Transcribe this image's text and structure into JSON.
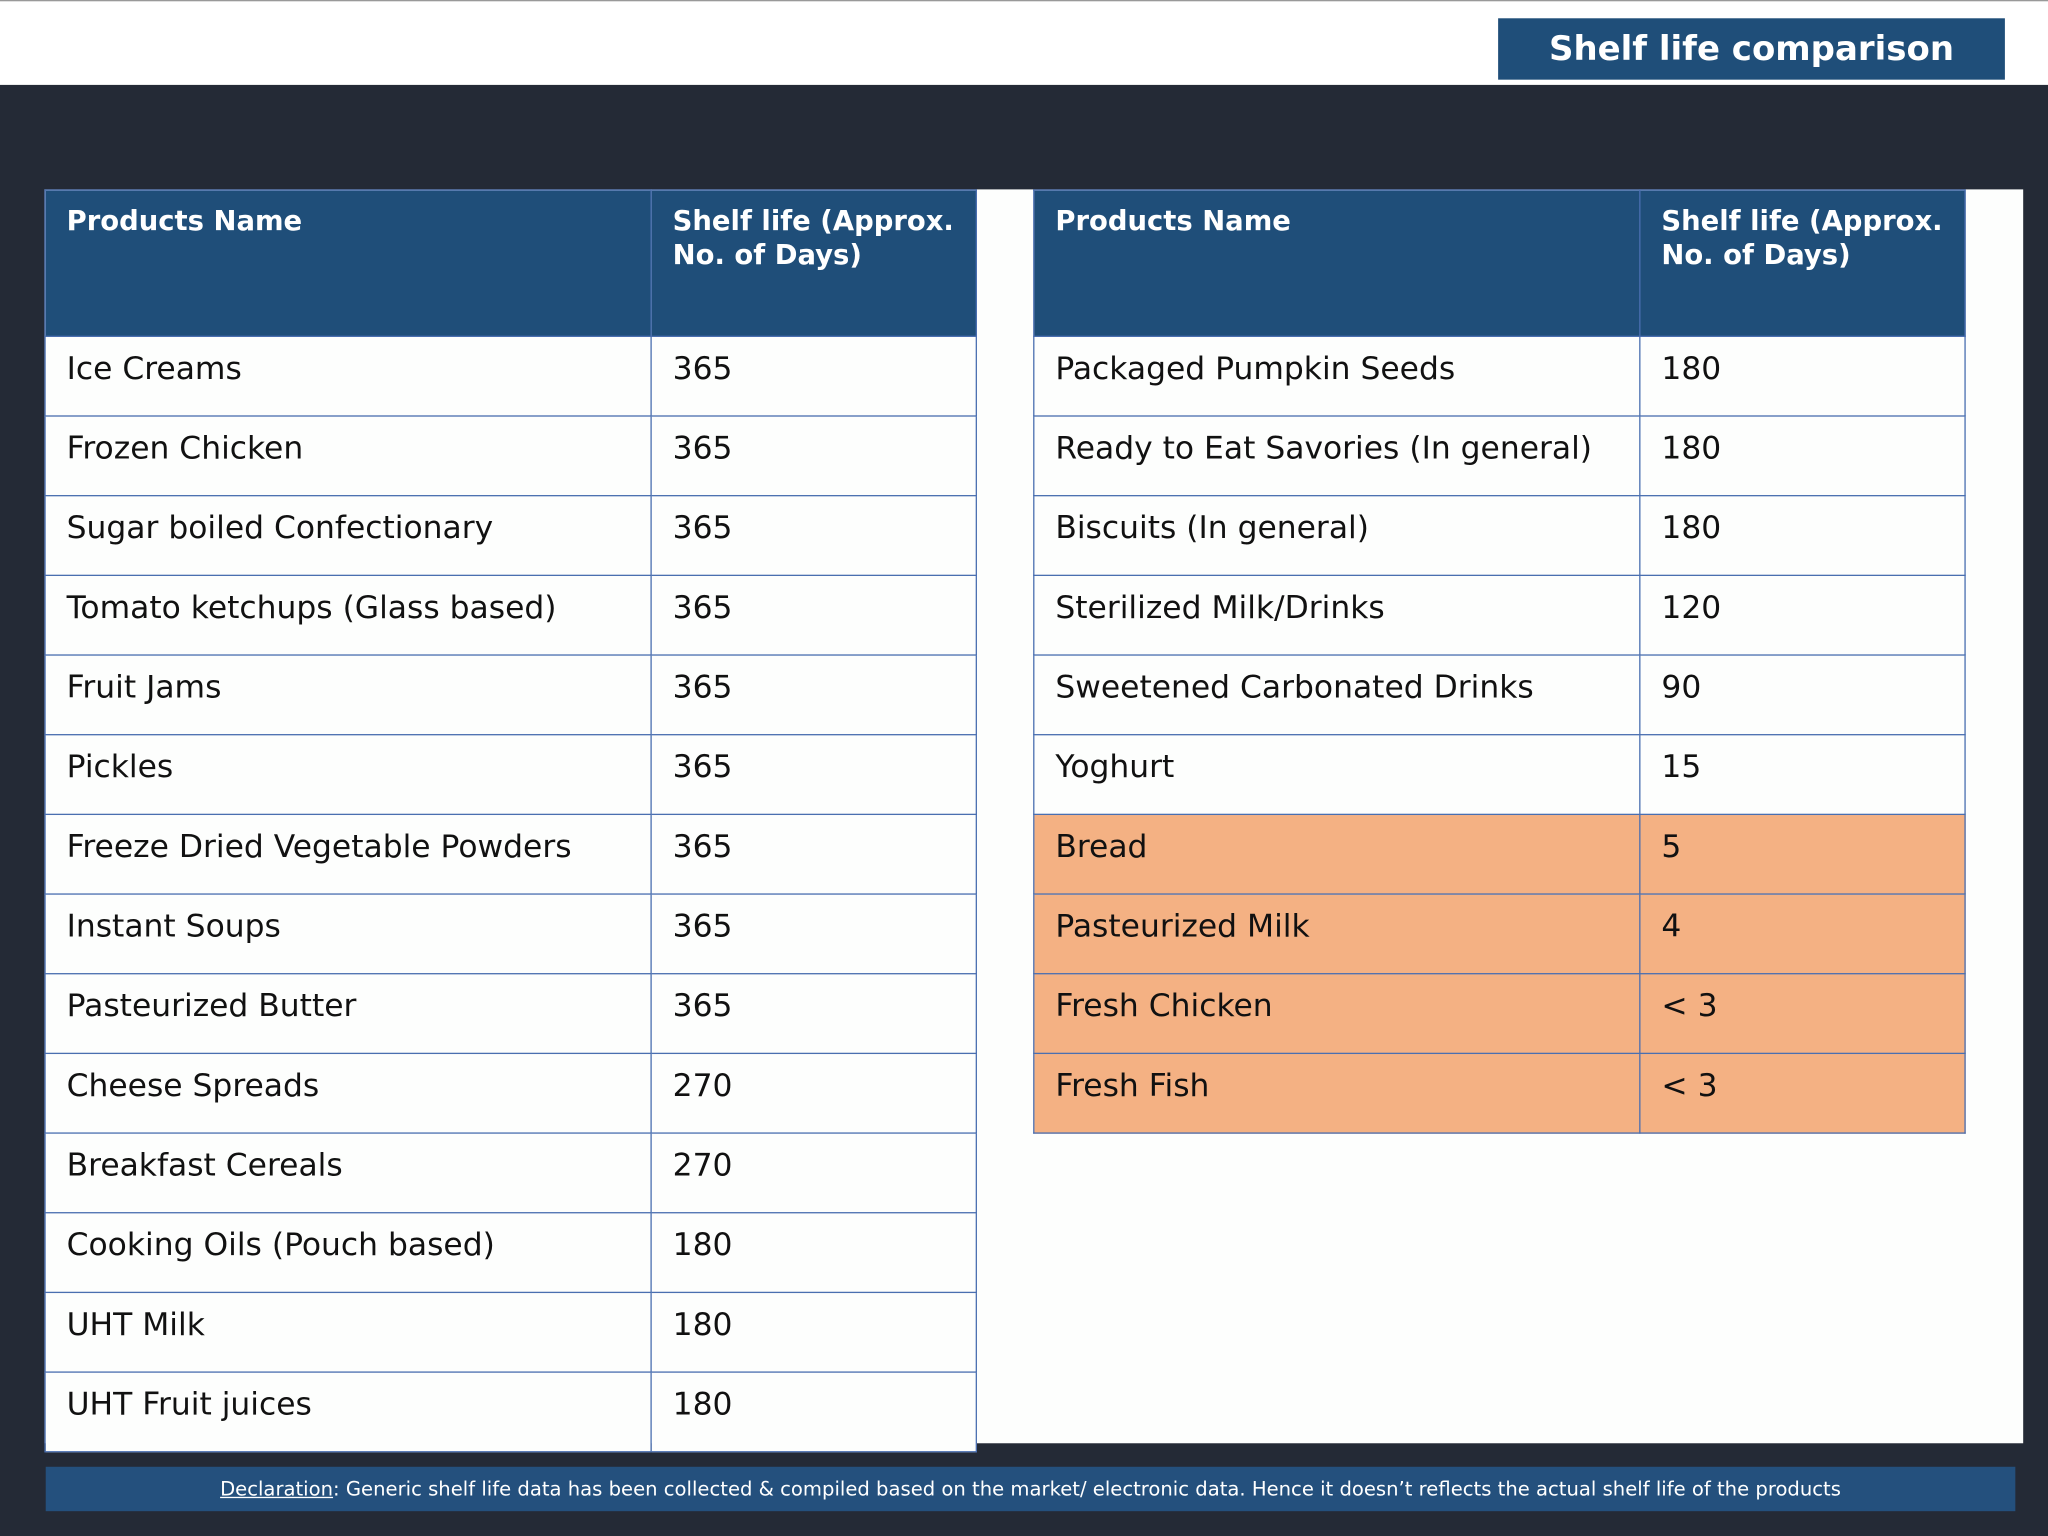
{
  "header": {
    "title": "Shelf life comparison"
  },
  "tables": [
    {
      "columns": [
        "Products Name",
        "Shelf life (Approx. No. of Days)"
      ],
      "rows": [
        [
          "Ice Creams",
          365
        ],
        [
          "Frozen Chicken",
          365
        ],
        [
          "Sugar boiled Confectionary",
          365
        ],
        [
          "Tomato ketchups (Glass based)",
          365
        ],
        [
          "Fruit Jams",
          365
        ],
        [
          "Pickles",
          365
        ],
        [
          "Freeze Dried Vegetable Powders",
          365
        ],
        [
          "Instant Soups",
          365
        ],
        [
          "Pasteurized Butter",
          365
        ],
        [
          "Cheese Spreads",
          270
        ],
        [
          "Breakfast Cereals",
          270
        ],
        [
          "Cooking Oils (Pouch based)",
          180
        ],
        [
          "UHT Milk",
          180
        ],
        [
          "UHT Fruit juices",
          180
        ]
      ],
      "highlighted_rows": []
    },
    {
      "columns": [
        "Products Name",
        "Shelf life (Approx. No. of Days)"
      ],
      "rows": [
        [
          "Packaged Pumpkin Seeds",
          180
        ],
        [
          "Ready to Eat Savories (In general)",
          180
        ],
        [
          "Biscuits (In general)",
          180
        ],
        [
          "Sterilized Milk/Drinks",
          120
        ],
        [
          "Sweetened Carbonated Drinks",
          90
        ],
        [
          "Yoghurt",
          15
        ],
        [
          "Bread",
          5
        ],
        [
          "Pasteurized Milk",
          4
        ],
        [
          "Fresh Chicken",
          "< 3"
        ],
        [
          "Fresh Fish",
          "< 3"
        ]
      ],
      "highlighted_rows": [
        6,
        7,
        8,
        9
      ]
    }
  ],
  "highlight_color": "#f4b183",
  "footer": {
    "label": "Declaration",
    "text": ": Generic shelf life data has been collected & compiled based on the market/ electronic data. Hence it doesn’t reflects the actual shelf life of the products"
  }
}
